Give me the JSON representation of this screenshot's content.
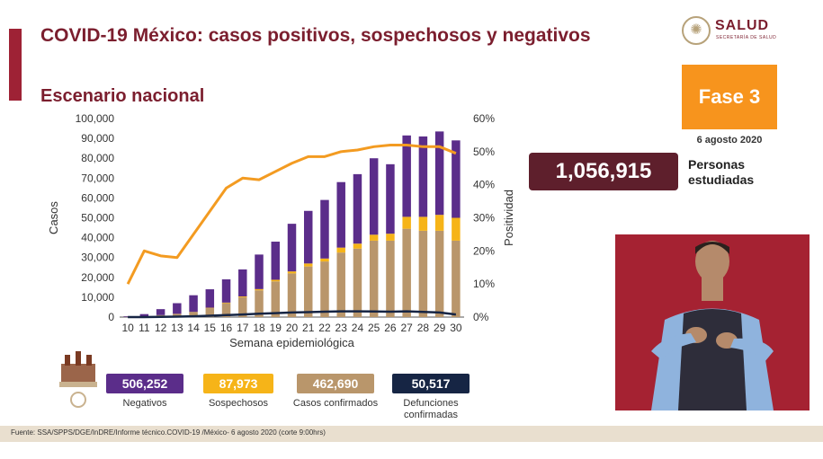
{
  "header": {
    "title": "COVID-19 México: casos positivos, sospechosos y negativos",
    "subtitle": "Escenario nacional"
  },
  "logo": {
    "name": "SALUD",
    "sub": "SECRETARÍA DE SALUD"
  },
  "fase": {
    "label": "Fase 3",
    "date": "6 agosto 2020"
  },
  "studied": {
    "value": "1,056,915",
    "label": "Personas estudiadas"
  },
  "stats": [
    {
      "value": "506,252",
      "label": "Negativos",
      "color": "#5b2d8a"
    },
    {
      "value": "87,973",
      "label": "Sospechosos",
      "color": "#f6b418"
    },
    {
      "value": "462,690",
      "label": "Casos confirmados",
      "color": "#b9966b"
    },
    {
      "value": "50,517",
      "label": "Defunciones confirmadas",
      "color": "#162544"
    }
  ],
  "footer": "Fuente: SSA/SPPS/DGE/InDRE/Informe técnico.COVID-19 /México- 6 agosto 2020 (corte 9:00hrs)",
  "chart_data": {
    "type": "bar",
    "stacked": true,
    "xlabel": "Semana epidemiológica",
    "ylabel": "Casos",
    "y2label": "Positividad",
    "ylim": [
      0,
      100000
    ],
    "y2lim": [
      0,
      60
    ],
    "yticks": [
      "0",
      "10,000",
      "20,000",
      "30,000",
      "40,000",
      "50,000",
      "60,000",
      "70,000",
      "80,000",
      "90,000",
      "100,000"
    ],
    "y2ticks": [
      "0%",
      "10%",
      "20%",
      "30%",
      "40%",
      "50%",
      "60%"
    ],
    "categories": [
      "10",
      "11",
      "12",
      "13",
      "14",
      "15",
      "16",
      "17",
      "18",
      "19",
      "20",
      "21",
      "22",
      "23",
      "24",
      "25",
      "26",
      "27",
      "28",
      "29",
      "30"
    ],
    "series": [
      {
        "name": "Casos confirmados",
        "color": "#b9966b",
        "values": [
          100,
          400,
          1000,
          1500,
          2500,
          4500,
          7000,
          10000,
          13500,
          18000,
          22000,
          25500,
          28000,
          32500,
          34500,
          38500,
          38500,
          44500,
          43500,
          43500,
          38500
        ]
      },
      {
        "name": "Sospechosos",
        "color": "#f6b418",
        "values": [
          0,
          0,
          0,
          100,
          100,
          200,
          300,
          400,
          600,
          800,
          1000,
          1500,
          1500,
          2500,
          2500,
          3000,
          3500,
          6000,
          7000,
          8000,
          11500
        ]
      },
      {
        "name": "Negativos",
        "color": "#5b2d8a",
        "values": [
          300,
          1100,
          3000,
          5400,
          8400,
          9300,
          11700,
          13600,
          17400,
          19200,
          24000,
          26500,
          29500,
          33000,
          35000,
          38500,
          35000,
          41000,
          40500,
          42000,
          39000
        ]
      },
      {
        "name": "Positividad",
        "type": "line",
        "axis": "right",
        "color": "#f39b21",
        "values": [
          10,
          20,
          18.5,
          18,
          25,
          32,
          39,
          42,
          41.5,
          44,
          46.5,
          48.5,
          48.5,
          50,
          50.5,
          51.5,
          52,
          52,
          51.5,
          51.5,
          49.5
        ]
      },
      {
        "name": "Defunciones confirmadas",
        "type": "line",
        "color": "#162544",
        "values": [
          0,
          0,
          100,
          200,
          400,
          700,
          1000,
          1300,
          1700,
          2000,
          2300,
          2500,
          2700,
          2900,
          2900,
          2800,
          2700,
          2900,
          2600,
          2300,
          1300
        ]
      }
    ]
  }
}
